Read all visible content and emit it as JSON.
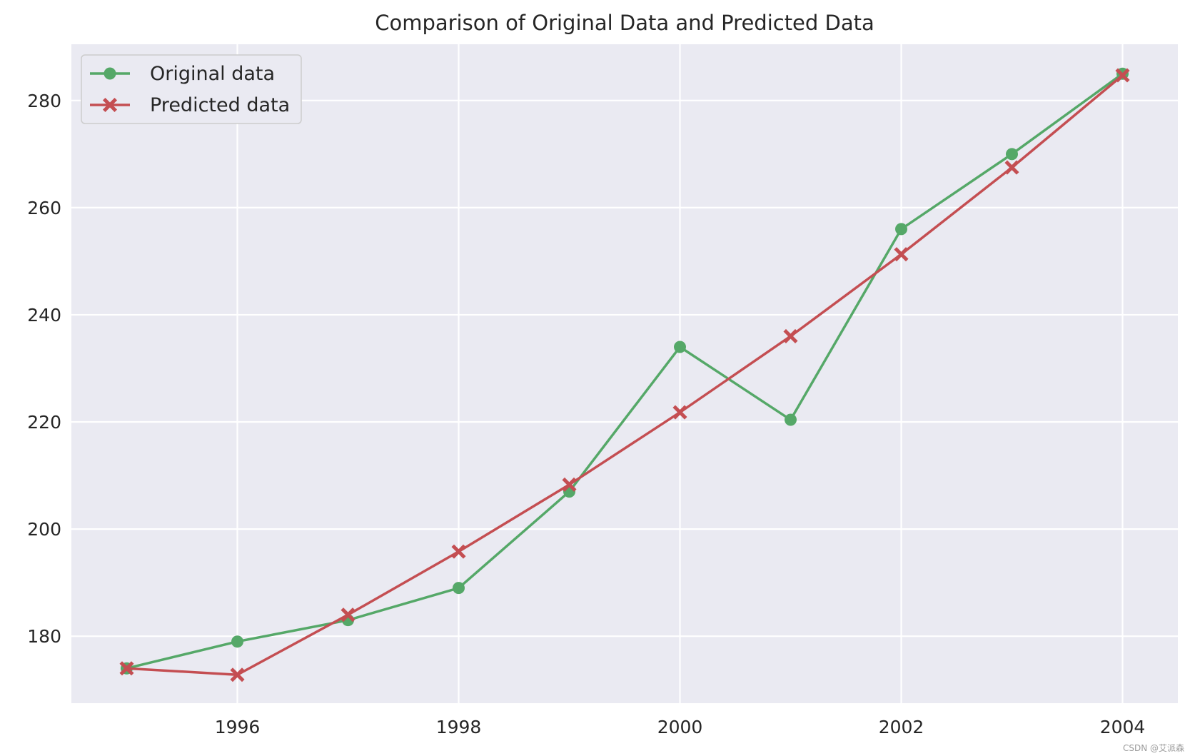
{
  "chart_data": {
    "type": "line",
    "title": "Comparison of Original Data and Predicted Data",
    "xlabel": "",
    "ylabel": "",
    "x": [
      1995,
      1996,
      1997,
      1998,
      1999,
      2000,
      2001,
      2002,
      2003,
      2004
    ],
    "xlim": [
      1994.5,
      2004.5
    ],
    "ylim": [
      167.5,
      290.5
    ],
    "xticks": [
      1996,
      1998,
      2000,
      2002,
      2004
    ],
    "yticks": [
      180,
      200,
      220,
      240,
      260,
      280
    ],
    "grid": true,
    "legend_position": "top-left",
    "series": [
      {
        "name": "Original data",
        "color": "#55a868",
        "marker": "circle",
        "values": [
          174,
          179,
          183,
          189,
          207,
          234,
          220.4,
          256,
          270,
          285
        ]
      },
      {
        "name": "Predicted data",
        "color": "#c44e52",
        "marker": "x",
        "values": [
          174.0,
          172.8,
          184.0,
          195.8,
          208.3,
          221.8,
          236.0,
          251.3,
          267.5,
          284.7
        ]
      }
    ]
  },
  "colors": {
    "plot_background": "#eaeaf2",
    "grid": "#ffffff",
    "text": "#262626"
  },
  "watermark": "CSDN @艾派森"
}
